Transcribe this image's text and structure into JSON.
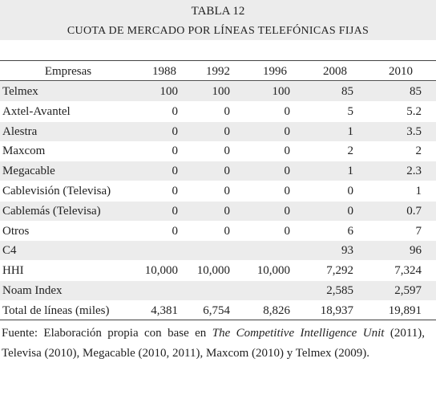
{
  "header": {
    "title": "TABLA 12",
    "subtitle": "CUOTA DE MERCADO POR LÍNEAS TELEFÓNICAS FIJAS"
  },
  "table": {
    "columns": [
      "Empresas",
      "1988",
      "1992",
      "1996",
      "2008",
      "2010"
    ],
    "rows": [
      [
        "Telmex",
        "100",
        "100",
        "100",
        "85",
        "85"
      ],
      [
        "Axtel-Avantel",
        "0",
        "0",
        "0",
        "5",
        "5.2"
      ],
      [
        "Alestra",
        "0",
        "0",
        "0",
        "1",
        "3.5"
      ],
      [
        "Maxcom",
        "0",
        "0",
        "0",
        "2",
        "2"
      ],
      [
        "Megacable",
        "0",
        "0",
        "0",
        "1",
        "2.3"
      ],
      [
        "Cablevisión (Televisa)",
        "0",
        "0",
        "0",
        "0",
        "1"
      ],
      [
        "Cablemás (Televisa)",
        "0",
        "0",
        "0",
        "0",
        "0.7"
      ],
      [
        "Otros",
        "0",
        "0",
        "0",
        "6",
        "7"
      ],
      [
        "C4",
        null,
        null,
        null,
        "93",
        "96"
      ],
      [
        "HHI",
        "10,000",
        "10,000",
        "10,000",
        "7,292",
        "7,324"
      ],
      [
        "Noam Index",
        null,
        null,
        null,
        "2,585",
        "2,597"
      ],
      [
        "Total de líneas (miles)",
        "4,381",
        "6,754",
        "8,826",
        "18,937",
        "19,891"
      ]
    ]
  },
  "source": {
    "prefix": "Fuente: Elaboración propia con base en",
    "italic": "The Competitive Intelligence Unit",
    "suffix": "(2011), Televisa (2010), Megacable (2010, 2011), Maxcom (2010) y Telmex (2009)."
  }
}
